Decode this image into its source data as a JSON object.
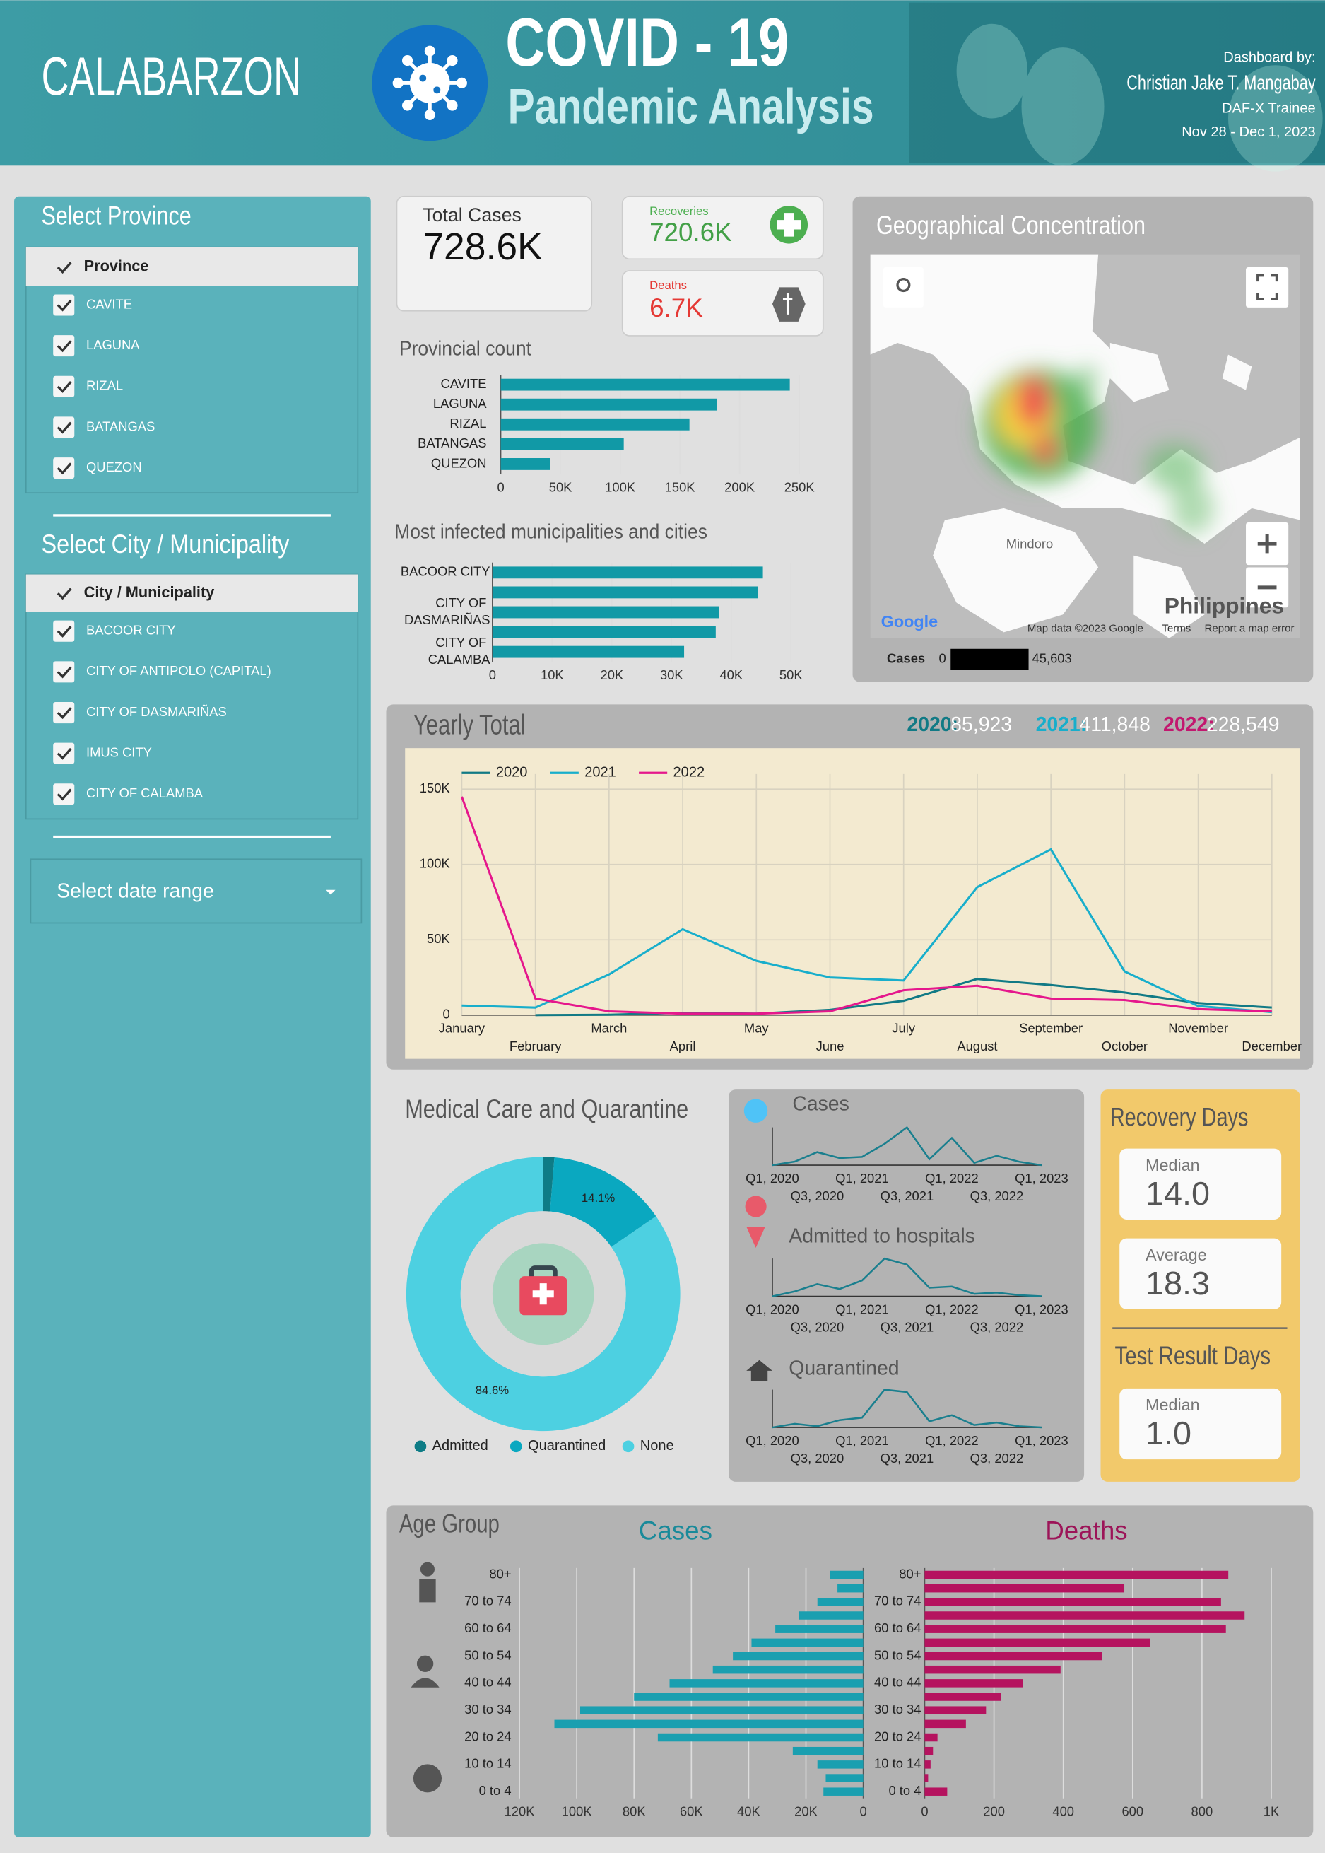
{
  "header": {
    "region": "CALABARZON",
    "title": "COVID - 19",
    "subtitle": "Pandemic Analysis",
    "credit_label": "Dashboard by:",
    "author": "Christian Jake T. Mangabay",
    "role": "DAF-X Trainee",
    "dates": "Nov 28 - Dec 1, 2023"
  },
  "filters": {
    "province": {
      "title": "Select Province",
      "header": "Province",
      "items": [
        "CAVITE",
        "LAGUNA",
        "RIZAL",
        "BATANGAS",
        "QUEZON"
      ]
    },
    "city": {
      "title": "Select City / Municipality",
      "header": "City / Municipality",
      "items": [
        "BACOOR CITY",
        "CITY OF ANTIPOLO (CAPITAL)",
        "CITY OF DASMARIÑAS",
        "IMUS CITY",
        "CITY OF CALAMBA"
      ]
    },
    "date_range": "Select date range"
  },
  "kpis": {
    "total": {
      "label": "Total Cases",
      "value": "728.6K"
    },
    "recoveries": {
      "label": "Recoveries",
      "value": "720.6K"
    },
    "deaths": {
      "label": "Deaths",
      "value": "6.7K"
    }
  },
  "map": {
    "title": "Geographical Concentration",
    "places": [
      "Mindoro",
      "Philippines"
    ],
    "logo": "Google",
    "attribution": "Map data ©2023 Google",
    "terms": "Terms",
    "report": "Report a map error",
    "legend": {
      "label": "Cases",
      "min": 0,
      "max": "45,603"
    }
  },
  "yearly_totals": [
    {
      "label": "2020:",
      "value": "85,923",
      "color": "#117a85"
    },
    {
      "label": "2021:",
      "value": "411,848",
      "color": "#18aecb"
    },
    {
      "label": "2022:",
      "value": "228,549",
      "color": "#c2186f"
    }
  ],
  "recovery": {
    "title": "Recovery Days",
    "median_label": "Median",
    "median": "14.0",
    "average_label": "Average",
    "average": "18.3"
  },
  "test_result": {
    "title": "Test Result Days",
    "median_label": "Median",
    "median": "1.0"
  },
  "age_group": {
    "title": "Age Group"
  },
  "chart_data": [
    {
      "type": "hbar",
      "title": "Provincial count",
      "categories": [
        "CAVITE",
        "LAGUNA",
        "RIZAL",
        "BATANGAS",
        "QUEZON"
      ],
      "values": [
        242000,
        181000,
        158000,
        103000,
        41500
      ],
      "color": "#1199a6",
      "xlim": [
        0,
        260000
      ],
      "xticks": [
        0,
        {
          "value": 50000,
          "label": "50K"
        },
        {
          "value": 100000,
          "label": "100K"
        },
        {
          "value": 150000,
          "label": "150K"
        },
        {
          "value": 200000,
          "label": "200K"
        },
        {
          "value": 250000,
          "label": "250K"
        }
      ],
      "grid": true
    },
    {
      "type": "hbar",
      "title": "Most infected municipalities and cities",
      "categories": [
        "BACOOR CITY",
        null,
        "CITY OF DASMARIÑAS",
        null,
        "CITY OF CALAMBA"
      ],
      "values": [
        45300,
        44500,
        38000,
        37400,
        32100
      ],
      "color": "#1199a6",
      "xlim": [
        0,
        54000
      ],
      "xticks": [
        0,
        {
          "value": 10000,
          "label": "10K"
        },
        {
          "value": 20000,
          "label": "20K"
        },
        {
          "value": 30000,
          "label": "30K"
        },
        {
          "value": 40000,
          "label": "40K"
        },
        {
          "value": 50000,
          "label": "50K"
        }
      ],
      "grid": true
    },
    {
      "type": "line",
      "title": "Yearly Total",
      "categories": [
        "January",
        "February",
        "March",
        "April",
        "May",
        "June",
        "July",
        "August",
        "September",
        "October",
        "November",
        "December"
      ],
      "series": [
        {
          "name": "2020",
          "color": "#117a85",
          "values": [
            null,
            0,
            300,
            1500,
            1000,
            3500,
            9500,
            24000,
            20000,
            15000,
            8000,
            5000
          ]
        },
        {
          "name": "2021",
          "color": "#18aecb",
          "values": [
            6400,
            5000,
            27000,
            57000,
            36000,
            25000,
            23000,
            85000,
            110000,
            29000,
            6000,
            2000
          ]
        },
        {
          "name": "2022",
          "color": "#e5178c",
          "values": [
            145000,
            11000,
            2500,
            1000,
            1000,
            2500,
            16500,
            19500,
            11000,
            10000,
            4000,
            2500
          ]
        }
      ],
      "ylim": [
        0,
        160000
      ],
      "yticks": [
        0,
        {
          "value": 50000,
          "label": "50K"
        },
        {
          "value": 100000,
          "label": "100K"
        },
        {
          "value": 150000,
          "label": "150K"
        }
      ],
      "grid": true,
      "legend": "top-left"
    },
    {
      "type": "donut",
      "title": "Medical Care and Quarantine",
      "categories": [
        "Admitted",
        "Quarantined",
        "None"
      ],
      "values": [
        1.3,
        14.1,
        84.6
      ],
      "value_labels": [
        null,
        "14.1%",
        "84.6%"
      ],
      "colors": [
        "#0e7c86",
        "#0aa8c0",
        "#4dd0e1"
      ],
      "legend": "bottom"
    },
    {
      "type": "sparkline",
      "title": "Cases",
      "categories": [
        "Q1, 2020",
        null,
        "Q3, 2020",
        null,
        "Q1, 2021",
        null,
        "Q3, 2021",
        null,
        "Q1, 2022",
        null,
        "Q3, 2022",
        null,
        "Q1, 2023"
      ],
      "values": [
        0,
        18500,
        68000,
        37000,
        43000,
        111000,
        197000,
        31000,
        142000,
        12000,
        49000,
        18000,
        0
      ],
      "color": "#1a7f8e"
    },
    {
      "type": "sparkline",
      "title": "Admitted to hospitals",
      "categories": [
        "Q1, 2020",
        null,
        "Q3, 2020",
        null,
        "Q1, 2021",
        null,
        "Q3, 2021",
        null,
        "Q1, 2022",
        null,
        "Q3, 2022",
        null,
        "Q1, 2023"
      ],
      "values": [
        0,
        320,
        800,
        480,
        1040,
        2480,
        2080,
        560,
        640,
        160,
        240,
        80,
        0
      ],
      "color": "#1a7f8e"
    },
    {
      "type": "sparkline",
      "title": "Quarantined",
      "categories": [
        "Q1, 2020",
        null,
        "Q3, 2020",
        null,
        "Q1, 2021",
        null,
        "Q3, 2021",
        null,
        "Q1, 2022",
        null,
        "Q3, 2022",
        null,
        "Q1, 2023"
      ],
      "values": [
        0,
        3000,
        1000,
        6000,
        8000,
        31000,
        29000,
        5000,
        10000,
        2000,
        4000,
        1000,
        0
      ],
      "color": "#1a7f8e"
    },
    {
      "type": "hbar",
      "title": "Cases",
      "reversed": true,
      "categories": [
        "80+",
        null,
        "70 to 74",
        null,
        "60 to 64",
        null,
        "50 to 54",
        null,
        "40 to 44",
        null,
        "30 to 34",
        null,
        "20 to 24",
        null,
        "10 to 14",
        null,
        "0 to 4"
      ],
      "values": [
        11500,
        9000,
        16000,
        22500,
        30700,
        39000,
        45500,
        52500,
        67600,
        80000,
        98800,
        107800,
        71700,
        24600,
        16000,
        13100,
        13900
      ],
      "color": "#1a9fb0",
      "xlim": [
        0,
        122000
      ],
      "xticks": [
        0,
        {
          "value": 20000,
          "label": "20K"
        },
        {
          "value": 40000,
          "label": "40K"
        },
        {
          "value": 60000,
          "label": "60K"
        },
        {
          "value": 80000,
          "label": "80K"
        },
        {
          "value": 100000,
          "label": "100K"
        },
        {
          "value": 120000,
          "label": "120K"
        }
      ],
      "grid": true
    },
    {
      "type": "hbar",
      "title": "Deaths",
      "categories": [
        "80+",
        null,
        "70 to 74",
        null,
        "60 to 64",
        null,
        "50 to 54",
        null,
        "40 to 44",
        null,
        "30 to 34",
        null,
        "20 to 24",
        null,
        "10 to 14",
        null,
        "0 to 4"
      ],
      "values": [
        876,
        576,
        855,
        923,
        869,
        651,
        511,
        392,
        283,
        221,
        177,
        119,
        37,
        24,
        17,
        10,
        65
      ],
      "color": "#b5135f",
      "xlim": [
        0,
        1080
      ],
      "xticks": [
        0,
        200,
        400,
        600,
        800,
        {
          "value": 1000,
          "label": "1K"
        }
      ],
      "grid": true
    }
  ]
}
